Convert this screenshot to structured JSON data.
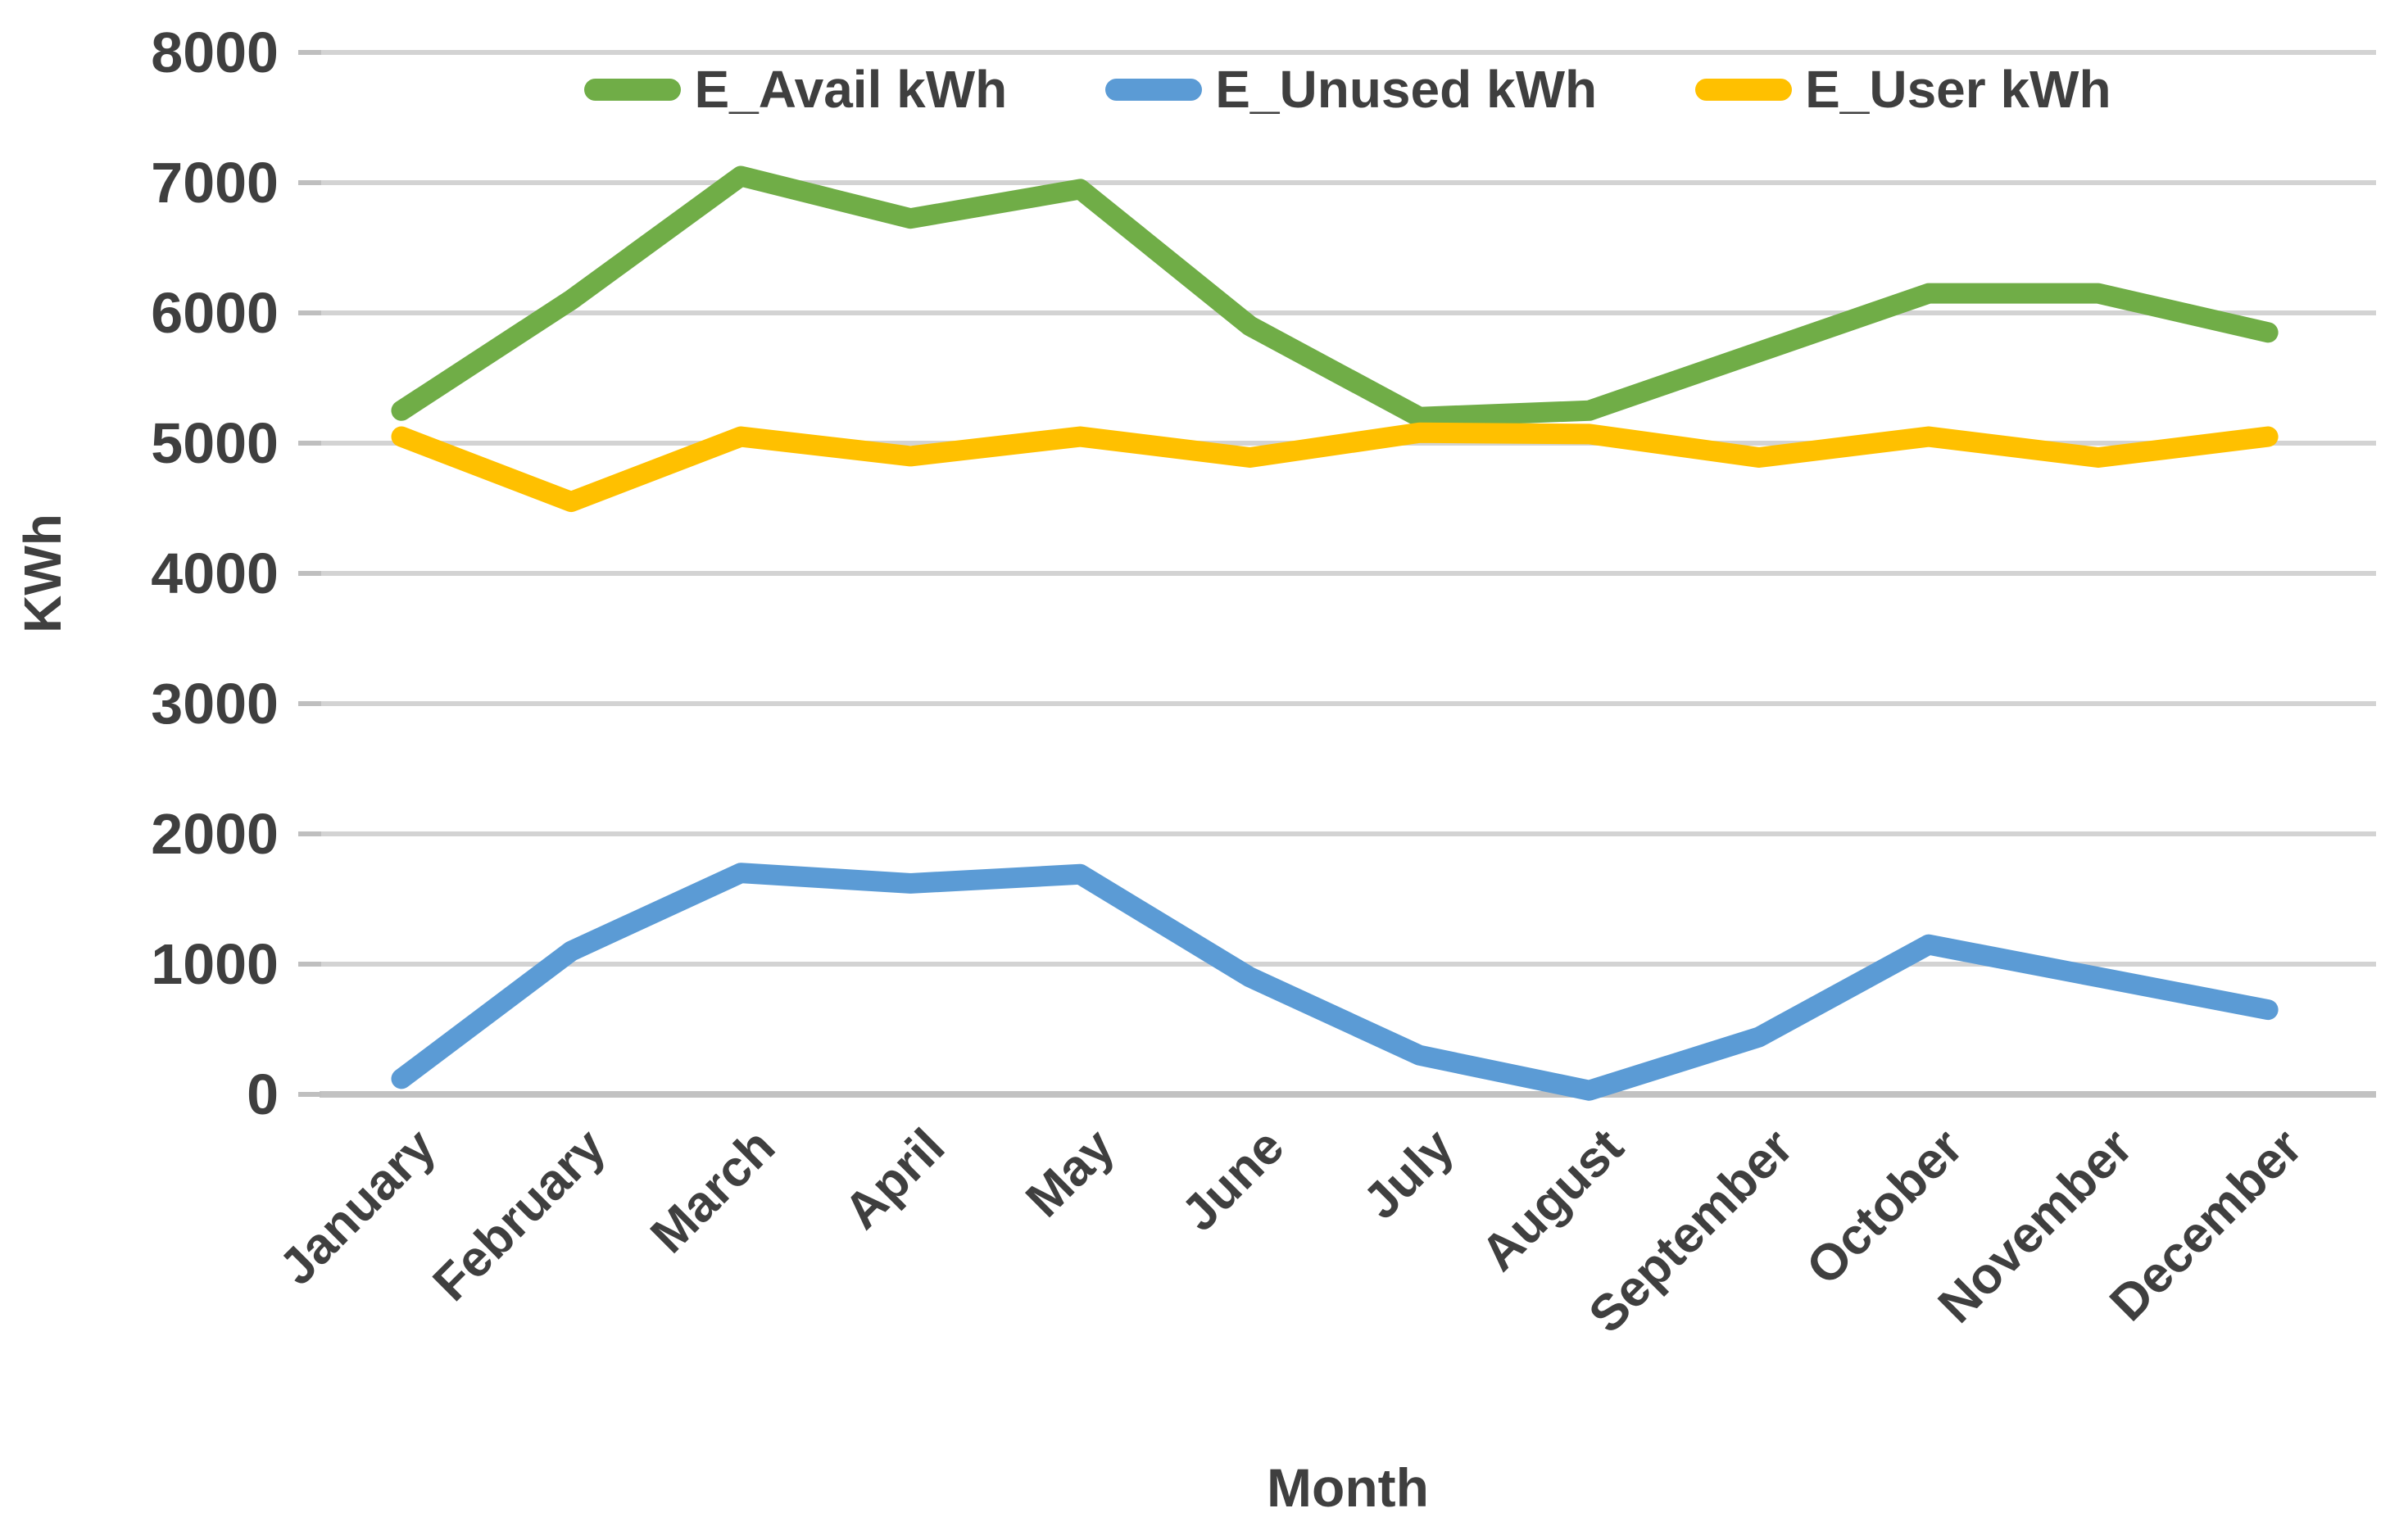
{
  "page": {
    "background": "#ffffff"
  },
  "chart_data": {
    "type": "line",
    "title": "",
    "categories": [
      "January",
      "February",
      "March",
      "April",
      "May",
      "June",
      "July",
      "August",
      "September",
      "October",
      "November",
      "December"
    ],
    "series": [
      {
        "name": "E_Avail kWh",
        "color": "#70AD47",
        "values": [
          5250,
          6100,
          7050,
          6725,
          6950,
          5900,
          5200,
          5250,
          5700,
          6150,
          6150,
          5850
        ]
      },
      {
        "name": "E_Unused kWh",
        "color": "#5B9BD5",
        "values": [
          120,
          1100,
          1700,
          1620,
          1690,
          900,
          300,
          30,
          440,
          1150,
          900,
          650
        ]
      },
      {
        "name": "E_User kWh",
        "color": "#FFC000",
        "values": [
          5050,
          4550,
          5050,
          4900,
          5050,
          4890,
          5080,
          5070,
          4890,
          5050,
          4890,
          5050
        ]
      }
    ],
    "xlabel": "Month",
    "ylabel": "KWh",
    "ylim": [
      0,
      8000
    ],
    "ytick_step": 1000,
    "ytick_labels": [
      "0",
      "1000",
      "2000",
      "3000",
      "4000",
      "5000",
      "6000",
      "7000",
      "8000"
    ],
    "legend": {
      "position": "top",
      "entries": [
        "E_Avail kWh",
        "E_Unused kWh",
        "E_User kWh"
      ]
    },
    "grid": true,
    "x_label_rotation_deg": -45,
    "styles": {
      "grid_color": "#D3D3D3",
      "zero_line_color": "#C2C2C2",
      "tick_color": "#BFBFBF",
      "text_color": "#3F3F3F",
      "line_width": 25
    }
  }
}
